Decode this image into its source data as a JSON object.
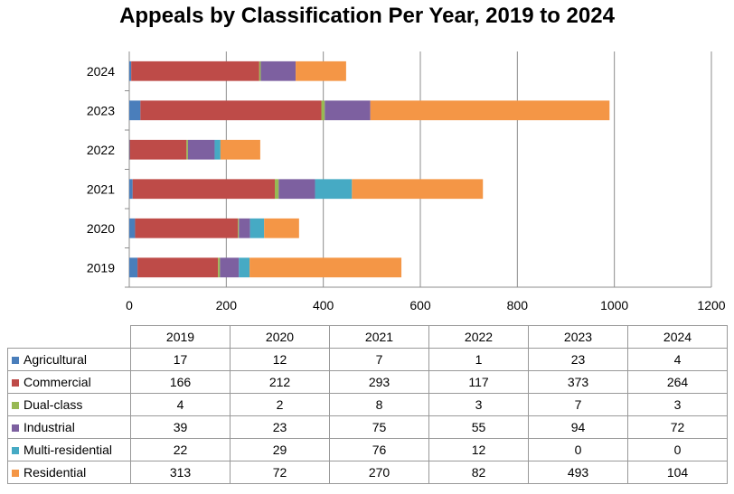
{
  "chart_data": {
    "type": "bar",
    "orientation": "horizontal",
    "stacked": true,
    "title": "Appeals by Classification Per Year, 2019 to 2024",
    "categories": [
      "2019",
      "2020",
      "2021",
      "2022",
      "2023",
      "2024"
    ],
    "xlim": [
      0,
      1200
    ],
    "xticks": [
      "0",
      "200",
      "400",
      "600",
      "800",
      "1000",
      "1200"
    ],
    "grid": true,
    "series": [
      {
        "name": "Agricultural",
        "color": "#4a7ebb",
        "values": [
          17,
          12,
          7,
          1,
          23,
          4
        ]
      },
      {
        "name": "Commercial",
        "color": "#be4b48",
        "values": [
          166,
          212,
          293,
          117,
          373,
          264
        ]
      },
      {
        "name": "Dual-class",
        "color": "#98b954",
        "values": [
          4,
          2,
          8,
          3,
          7,
          3
        ]
      },
      {
        "name": "Industrial",
        "color": "#7d60a0",
        "values": [
          39,
          23,
          75,
          55,
          94,
          72
        ]
      },
      {
        "name": "Multi-residential",
        "color": "#46aac4",
        "values": [
          22,
          29,
          76,
          12,
          0,
          0
        ]
      },
      {
        "name": "Residential",
        "color": "#f49646",
        "values": [
          313,
          72,
          270,
          82,
          493,
          104
        ]
      }
    ]
  }
}
